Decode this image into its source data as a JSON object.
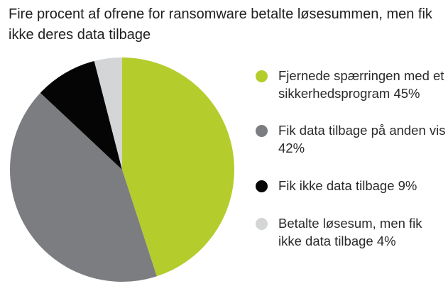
{
  "chart_data": {
    "type": "pie",
    "title": "Fire procent af ofrene for ransomware betalte løsesummen, men fik ikke deres data tilbage",
    "slices": [
      {
        "label": "Fjernede spærringen med et sikkerhedsprogram",
        "value": 45,
        "display": "45%",
        "color": "#b5cc2d"
      },
      {
        "label": "Fik data tilbage på anden vis",
        "value": 42,
        "display": "42%",
        "color": "#7c7d80"
      },
      {
        "label": "Fik ikke data tilbage",
        "value": 9,
        "display": "9%",
        "color": "#050505"
      },
      {
        "label": "Betalte løsesum, men fik ikke data tilbage",
        "value": 4,
        "display": "4%",
        "color": "#d4d5d6"
      }
    ],
    "legend_position": "right"
  }
}
